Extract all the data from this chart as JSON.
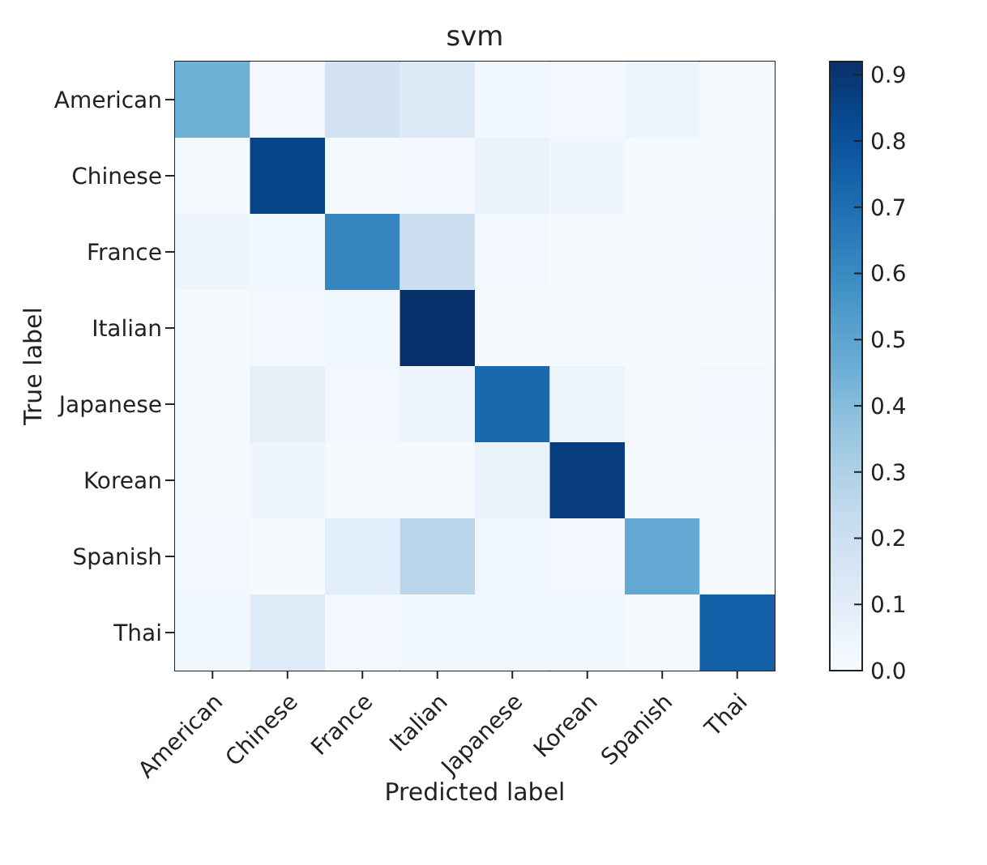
{
  "chart_data": {
    "type": "heatmap",
    "title": "svm",
    "xlabel": "Predicted label",
    "ylabel": "True label",
    "categories": [
      "American",
      "Chinese",
      "France",
      "Italian",
      "Japanese",
      "Korean",
      "Spanish",
      "Thai"
    ],
    "y_categories": [
      "American",
      "Chinese",
      "France",
      "Italian",
      "Japanese",
      "Korean",
      "Spanish",
      "Thai"
    ],
    "cells": [
      [
        0.45,
        0.02,
        0.17,
        0.13,
        0.03,
        0.02,
        0.05,
        0.01
      ],
      [
        0.01,
        0.85,
        0.01,
        0.02,
        0.06,
        0.04,
        0.01,
        0.01
      ],
      [
        0.04,
        0.03,
        0.62,
        0.2,
        0.02,
        0.01,
        0.01,
        0.02
      ],
      [
        0.01,
        0.02,
        0.03,
        0.92,
        0.01,
        0.01,
        0.01,
        0.01
      ],
      [
        0.01,
        0.08,
        0.02,
        0.04,
        0.72,
        0.05,
        0.01,
        0.02
      ],
      [
        0.01,
        0.04,
        0.01,
        0.01,
        0.06,
        0.87,
        0.01,
        0.01
      ],
      [
        0.02,
        0.01,
        0.1,
        0.27,
        0.03,
        0.02,
        0.48,
        0.01
      ],
      [
        0.03,
        0.12,
        0.02,
        0.03,
        0.03,
        0.03,
        0.01,
        0.75
      ]
    ],
    "clim": [
      0,
      0.92
    ],
    "cticks": [
      {
        "value": 0,
        "label": "0.0"
      },
      0.1,
      0.2,
      0.3,
      0.4,
      0.5,
      0.6,
      0.7,
      0.8,
      0.9
    ]
  }
}
